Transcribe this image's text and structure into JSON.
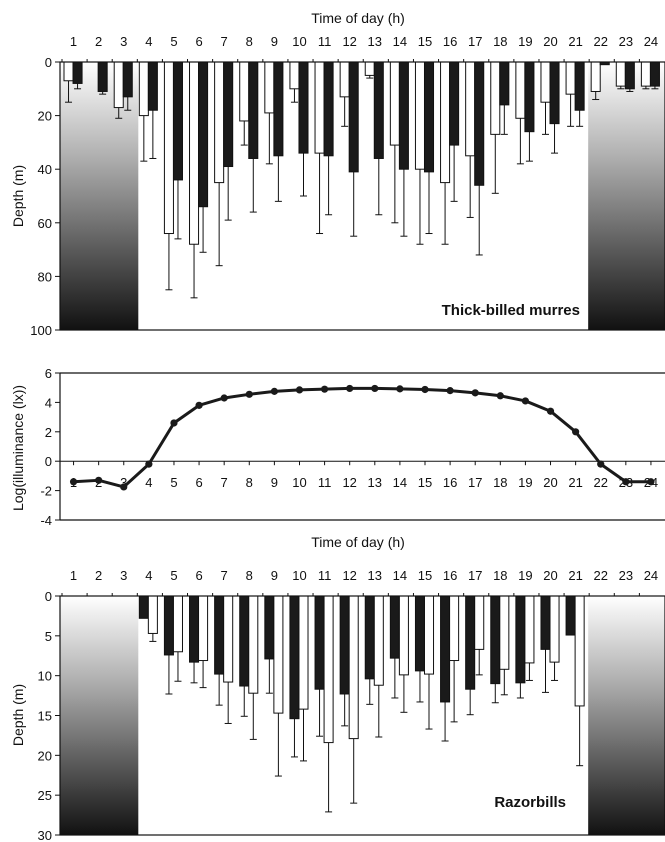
{
  "chart_data": [
    {
      "type": "bar",
      "title": "",
      "xlabel": "Time of day (h)",
      "ylabel": "Depth (m)",
      "ylim": [
        0,
        100
      ],
      "y_axis_inverted": true,
      "yticks": [
        0,
        20,
        40,
        60,
        80,
        100
      ],
      "categories": [
        "1",
        "2",
        "3",
        "4",
        "5",
        "6",
        "7",
        "8",
        "9",
        "10",
        "11",
        "12",
        "13",
        "14",
        "15",
        "16",
        "17",
        "18",
        "19",
        "20",
        "21",
        "22",
        "23",
        "24"
      ],
      "shaded_hours": [
        "1",
        "2",
        "3",
        "22",
        "23",
        "24"
      ],
      "annotation": "Thick-billed murres",
      "series": [
        {
          "color": "#ffffff",
          "values": [
            7,
            null,
            17,
            20,
            64,
            68,
            45,
            22,
            19,
            10,
            34,
            13,
            5,
            31,
            40,
            45,
            35,
            27,
            21,
            15,
            12,
            11,
            9,
            9
          ],
          "error_upper": [
            15,
            null,
            21,
            37,
            85,
            88,
            76,
            31,
            38,
            15,
            64,
            24,
            6,
            60,
            68,
            68,
            58,
            49,
            38,
            27,
            24,
            14,
            10,
            10
          ]
        },
        {
          "color": "#1a1a1a",
          "values": [
            8,
            11,
            13,
            18,
            44,
            54,
            39,
            36,
            35,
            34,
            35,
            41,
            36,
            40,
            41,
            31,
            46,
            16,
            26,
            23,
            18,
            1,
            10,
            9
          ],
          "error_upper": [
            10,
            12,
            18,
            36,
            66,
            71,
            59,
            56,
            52,
            50,
            57,
            65,
            57,
            65,
            64,
            52,
            72,
            27,
            37,
            34,
            24,
            1,
            11,
            10
          ]
        }
      ]
    },
    {
      "type": "line",
      "xlabel": "Time of day (h)",
      "ylabel": "Log(illuminance (lx))",
      "ylim": [
        -4,
        6
      ],
      "yticks": [
        -4,
        -2,
        0,
        2,
        4,
        6
      ],
      "x": [
        1,
        2,
        3,
        4,
        5,
        6,
        7,
        8,
        9,
        10,
        11,
        12,
        13,
        14,
        15,
        16,
        17,
        18,
        19,
        20,
        21,
        22,
        23,
        24
      ],
      "values": [
        -1.4,
        -1.3,
        -1.75,
        -0.2,
        2.6,
        3.8,
        4.3,
        4.55,
        4.75,
        4.85,
        4.9,
        4.95,
        4.95,
        4.92,
        4.88,
        4.8,
        4.65,
        4.45,
        4.1,
        3.4,
        2.0,
        -0.2,
        -1.4,
        -1.4
      ],
      "color": "#1a1a1a"
    },
    {
      "type": "bar",
      "xlabel": "Time of day (h)",
      "ylabel": "Depth (m)",
      "ylim": [
        0,
        30
      ],
      "y_axis_inverted": true,
      "yticks": [
        0,
        5,
        10,
        15,
        20,
        25,
        30
      ],
      "categories": [
        "1",
        "2",
        "3",
        "4",
        "5",
        "6",
        "7",
        "8",
        "9",
        "10",
        "11",
        "12",
        "13",
        "14",
        "15",
        "16",
        "17",
        "18",
        "19",
        "20",
        "21",
        "22",
        "23",
        "24"
      ],
      "shaded_hours": [
        "1",
        "2",
        "3",
        "22",
        "23",
        "24"
      ],
      "annotation": "Razorbills",
      "series": [
        {
          "color": "#1a1a1a",
          "values": [
            null,
            null,
            null,
            2.8,
            7.4,
            8.3,
            9.8,
            11.3,
            7.9,
            15.4,
            11.7,
            12.3,
            10.4,
            7.8,
            9.4,
            13.3,
            11.7,
            11.0,
            10.9,
            6.7,
            4.9,
            null,
            null,
            null
          ],
          "error_upper": [
            null,
            null,
            null,
            2.8,
            12.3,
            10.9,
            13.7,
            15.1,
            12.2,
            20.2,
            17.6,
            16.3,
            13.6,
            12.8,
            13.3,
            18.2,
            14.9,
            13.4,
            12.8,
            12.1,
            4.9,
            null,
            null,
            null
          ]
        },
        {
          "color": "#ffffff",
          "values": [
            null,
            null,
            null,
            4.7,
            7.0,
            8.1,
            10.8,
            12.2,
            14.7,
            14.2,
            18.4,
            17.9,
            11.2,
            9.9,
            9.8,
            8.1,
            6.7,
            9.2,
            8.4,
            8.3,
            13.8,
            null,
            null,
            null
          ],
          "error_upper": [
            null,
            null,
            null,
            5.7,
            10.7,
            11.5,
            16.0,
            18.0,
            22.6,
            20.7,
            27.1,
            26.0,
            17.7,
            14.6,
            16.7,
            15.8,
            9.9,
            12.4,
            10.6,
            10.6,
            21.3,
            null,
            null,
            null
          ]
        }
      ]
    }
  ]
}
